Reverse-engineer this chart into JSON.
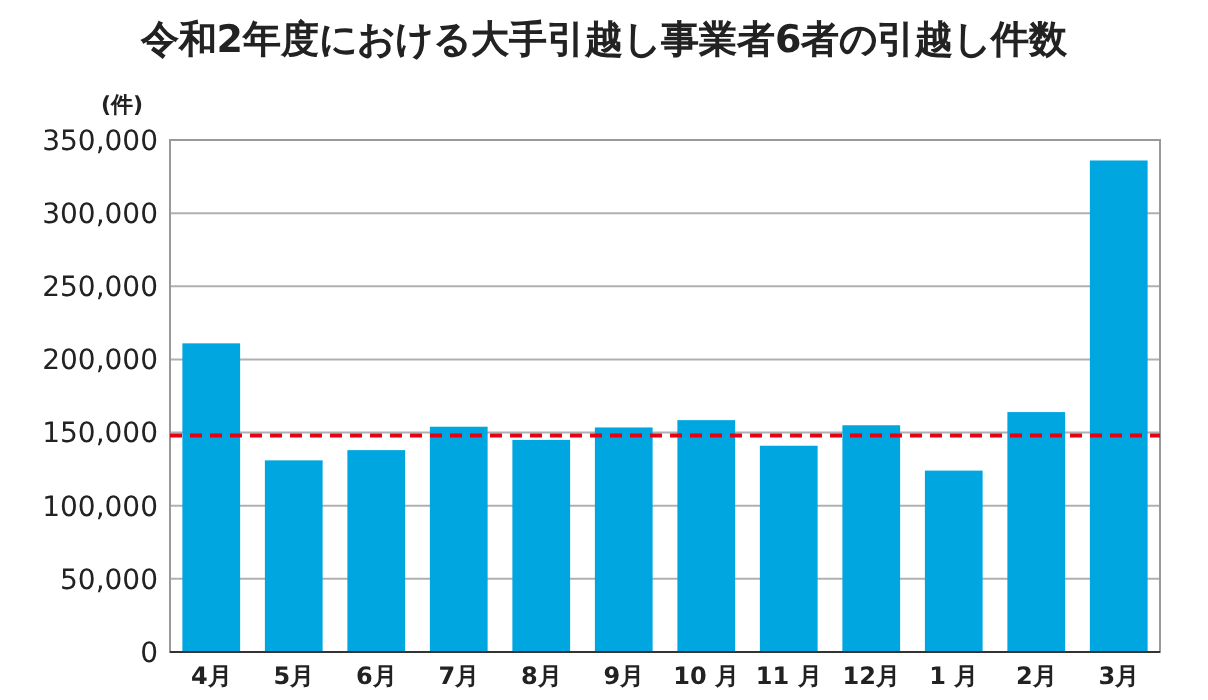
{
  "chart_data": {
    "type": "bar",
    "title": "令和2年度における大手引越し事業者6者の引越し件数",
    "ylabel": "(件)",
    "categories": [
      "4月",
      "5月",
      "6月",
      "7月",
      "8月",
      "9月",
      "10 月",
      "11 月",
      "12月",
      "1 月",
      "2月",
      "3月"
    ],
    "values": [
      211000,
      131000,
      138000,
      154000,
      145000,
      153500,
      158500,
      141000,
      155000,
      124000,
      164000,
      336000
    ],
    "color": "#00a6e0",
    "ylim": [
      0,
      350000
    ],
    "yticks": [
      {
        "value": 0,
        "label": "0"
      },
      {
        "value": 50000,
        "label": "50,000"
      },
      {
        "value": 100000,
        "label": "100,000"
      },
      {
        "value": 150000,
        "label": "150,000"
      },
      {
        "value": 200000,
        "label": "200,000"
      },
      {
        "value": 250000,
        "label": "250,000"
      },
      {
        "value": 300000,
        "label": "300,000"
      },
      {
        "value": 350000,
        "label": "350,000"
      }
    ],
    "grid": "y",
    "ref_lines": [
      {
        "axis": "y",
        "value": 148000,
        "color": "#e60012",
        "line_style": "dashed"
      }
    ]
  }
}
